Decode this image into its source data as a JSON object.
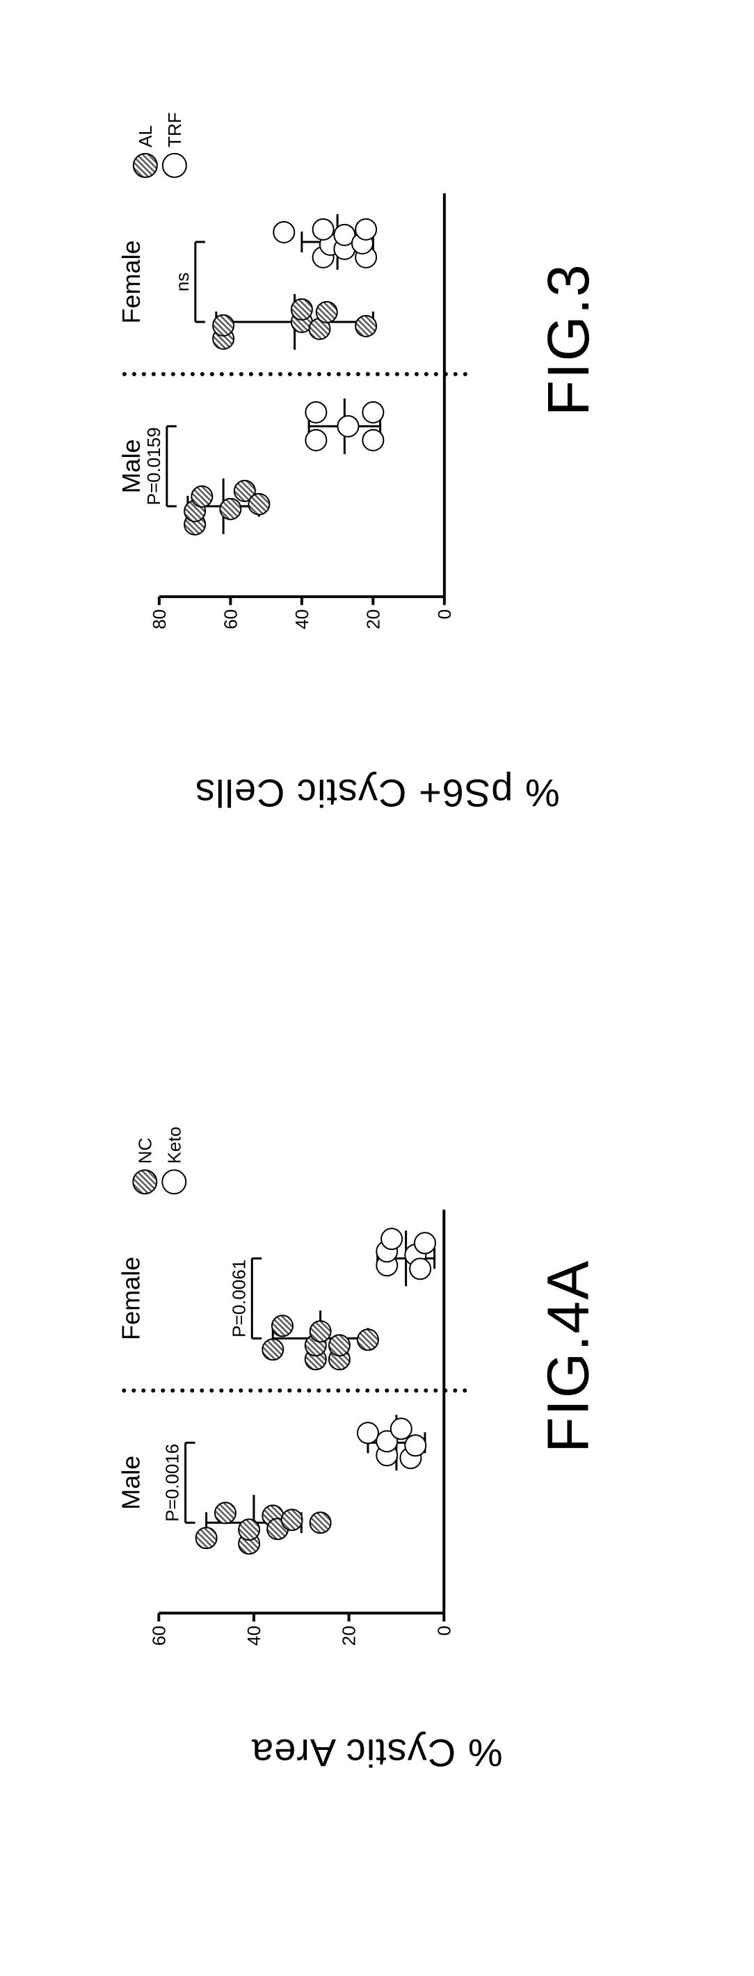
{
  "fig3": {
    "type": "scatter",
    "label": "FIG.3",
    "ylabel": "% pS6+ Cystic Cells",
    "ylim": [
      0,
      80
    ],
    "ytick_step": 20,
    "yticks": [
      0,
      20,
      40,
      60,
      80
    ],
    "plot_bg": "#ffffff",
    "axis_color": "#000000",
    "tick_fontsize": 26,
    "label_fontsize": 56,
    "title_fontsize": 36,
    "marker_radius": 15,
    "marker_stroke": "#000000",
    "marker_stroke_width": 2,
    "marker_fill_closed": "hatched",
    "marker_fill_open": "#ffffff",
    "errorbar_stroke": "#000000",
    "errorbar_stroke_width": 3,
    "divider_style": "dotted",
    "divider_color": "#000000",
    "groups": [
      {
        "name": "Male",
        "pvalue": "P=0.0159",
        "subgroups": [
          {
            "name": "AL",
            "style": "closed",
            "mean": 62,
            "sd_low": 52,
            "sd_high": 72,
            "x": 0,
            "points": [
              {
                "dx": -26,
                "y": 70
              },
              {
                "dx": -7,
                "y": 70
              },
              {
                "dx": 14,
                "y": 68
              },
              {
                "dx": -4,
                "y": 60
              },
              {
                "dx": 22,
                "y": 56
              },
              {
                "dx": 3,
                "y": 52
              }
            ]
          },
          {
            "name": "TRF",
            "style": "open",
            "mean": 28,
            "sd_low": 18,
            "sd_high": 38,
            "x": 1,
            "points": [
              {
                "dx": -20,
                "y": 36
              },
              {
                "dx": 20,
                "y": 36
              },
              {
                "dx": 0,
                "y": 27
              },
              {
                "dx": -20,
                "y": 20
              },
              {
                "dx": 20,
                "y": 20
              }
            ]
          }
        ]
      },
      {
        "name": "Female",
        "pvalue": "ns",
        "subgroups": [
          {
            "name": "AL",
            "style": "closed",
            "mean": 42,
            "sd_low": 20,
            "sd_high": 64,
            "x": 2,
            "points": [
              {
                "dx": -24,
                "y": 62
              },
              {
                "dx": -5,
                "y": 62
              },
              {
                "dx": 0,
                "y": 40
              },
              {
                "dx": 18,
                "y": 40
              },
              {
                "dx": -10,
                "y": 35
              },
              {
                "dx": 14,
                "y": 33
              },
              {
                "dx": -6,
                "y": 22
              }
            ]
          },
          {
            "name": "TRF",
            "style": "open",
            "mean": 30,
            "sd_low": 20,
            "sd_high": 40,
            "x": 3,
            "points": [
              {
                "dx": 14,
                "y": 45
              },
              {
                "dx": -22,
                "y": 34
              },
              {
                "dx": -4,
                "y": 32
              },
              {
                "dx": 18,
                "y": 34
              },
              {
                "dx": -10,
                "y": 28
              },
              {
                "dx": 10,
                "y": 28
              },
              {
                "dx": -22,
                "y": 22
              },
              {
                "dx": -2,
                "y": 23
              },
              {
                "dx": 18,
                "y": 22
              }
            ]
          }
        ]
      }
    ],
    "legend": [
      {
        "style": "closed",
        "label": "AL"
      },
      {
        "style": "open",
        "label": "TRF"
      }
    ]
  },
  "fig4a": {
    "type": "scatter",
    "label": "FIG.4A",
    "ylabel": "% Cystic Area",
    "ylim": [
      0,
      60
    ],
    "ytick_step": 20,
    "yticks": [
      0,
      20,
      40,
      60
    ],
    "plot_bg": "#ffffff",
    "axis_color": "#000000",
    "tick_fontsize": 26,
    "label_fontsize": 56,
    "title_fontsize": 36,
    "marker_radius": 15,
    "marker_stroke": "#000000",
    "marker_stroke_width": 2,
    "marker_fill_closed": "hatched",
    "marker_fill_open": "#ffffff",
    "errorbar_stroke": "#000000",
    "errorbar_stroke_width": 3,
    "divider_style": "dotted",
    "divider_color": "#000000",
    "groups": [
      {
        "name": "Male",
        "pvalue": "P=0.0016",
        "subgroups": [
          {
            "name": "NC",
            "style": "closed",
            "mean": 40,
            "sd_low": 30,
            "sd_high": 50,
            "x": 0,
            "points": [
              {
                "dx": -22,
                "y": 50
              },
              {
                "dx": 14,
                "y": 46
              },
              {
                "dx": -30,
                "y": 41
              },
              {
                "dx": -10,
                "y": 41
              },
              {
                "dx": 10,
                "y": 36
              },
              {
                "dx": -9,
                "y": 35
              },
              {
                "dx": 4,
                "y": 32
              },
              {
                "dx": 0,
                "y": 26
              }
            ]
          },
          {
            "name": "Keto",
            "style": "open",
            "mean": 10,
            "sd_low": 4,
            "sd_high": 16,
            "x": 1,
            "points": [
              {
                "dx": 14,
                "y": 16
              },
              {
                "dx": -18,
                "y": 12
              },
              {
                "dx": 2,
                "y": 12
              },
              {
                "dx": 20,
                "y": 9
              },
              {
                "dx": -22,
                "y": 7
              },
              {
                "dx": -4,
                "y": 6
              }
            ]
          }
        ]
      },
      {
        "name": "Female",
        "pvalue": "P=0.0061",
        "subgroups": [
          {
            "name": "NC",
            "style": "closed",
            "mean": 26,
            "sd_low": 16,
            "sd_high": 36,
            "x": 2,
            "points": [
              {
                "dx": -16,
                "y": 36
              },
              {
                "dx": 18,
                "y": 34
              },
              {
                "dx": -30,
                "y": 27
              },
              {
                "dx": -10,
                "y": 27
              },
              {
                "dx": 10,
                "y": 26
              },
              {
                "dx": -30,
                "y": 22
              },
              {
                "dx": -10,
                "y": 22
              },
              {
                "dx": -2,
                "y": 16
              }
            ]
          },
          {
            "name": "Keto",
            "style": "open",
            "mean": 8,
            "sd_low": 2,
            "sd_high": 14,
            "x": 3,
            "points": [
              {
                "dx": -10,
                "y": 12
              },
              {
                "dx": 10,
                "y": 12
              },
              {
                "dx": 28,
                "y": 11
              },
              {
                "dx": 5,
                "y": 6
              },
              {
                "dx": -15,
                "y": 5
              },
              {
                "dx": 22,
                "y": 4
              }
            ]
          }
        ]
      }
    ],
    "legend": [
      {
        "style": "closed",
        "label": "NC"
      },
      {
        "style": "open",
        "label": "Keto"
      }
    ]
  }
}
